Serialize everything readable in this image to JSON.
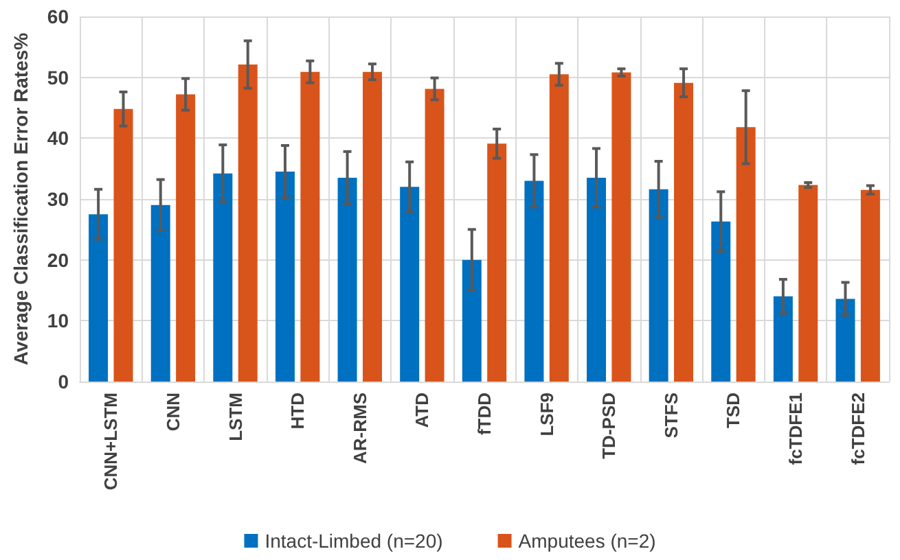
{
  "chart_data": {
    "type": "bar",
    "ylabel": "Average Classification Error Rates%",
    "categories": [
      "CNN+LSTM",
      "CNN",
      "LSTM",
      "HTD",
      "AR-RMS",
      "ATD",
      "fTDD",
      "LSF9",
      "TD-PSD",
      "STFS",
      "TSD",
      "fcTDFE1",
      "fcTDFE2"
    ],
    "series": [
      {
        "name": "Intact-Limbed (n=20)",
        "color": "#0070c0",
        "values": [
          27.5,
          29,
          34.2,
          34.5,
          33.5,
          32,
          20,
          33,
          33.5,
          31.6,
          26.3,
          14,
          13.6
        ],
        "errors": [
          4.1,
          4.2,
          4.7,
          4.3,
          4.3,
          4.1,
          5,
          4.3,
          4.8,
          4.6,
          4.9,
          2.8,
          2.7
        ]
      },
      {
        "name": "Amputees (n=2)",
        "color": "#d9541a",
        "values": [
          44.8,
          47.2,
          52.1,
          50.9,
          50.9,
          48.1,
          39.1,
          50.5,
          50.8,
          49.1,
          41.8,
          32.3,
          31.5
        ],
        "errors": [
          2.8,
          2.6,
          3.9,
          1.8,
          1.3,
          1.8,
          2.4,
          1.8,
          0.6,
          2.3,
          6,
          0.4,
          0.7
        ]
      }
    ],
    "ylim": [
      0,
      60
    ],
    "yticks": [
      0,
      10,
      20,
      30,
      40,
      50,
      60
    ],
    "grid": true,
    "legend": "bottom"
  }
}
